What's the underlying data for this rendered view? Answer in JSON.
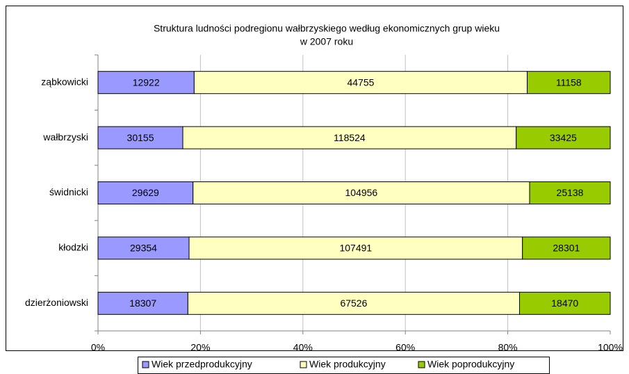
{
  "chart_data": {
    "type": "bar",
    "orientation": "horizontal",
    "stack": "percent",
    "title": [
      "Struktura ludności podregionu wałbrzyskiego według ekonomicznych grup wieku",
      "w 2007 roku"
    ],
    "categories": [
      "ząbkowicki",
      "wałbrzyski",
      "świdnicki",
      "kłodzki",
      "dzierżoniowski"
    ],
    "series": [
      {
        "name": "Wiek przedprodukcyjny",
        "color": "#9999ff",
        "values": [
          12922,
          30155,
          29629,
          29354,
          18307
        ]
      },
      {
        "name": "Wiek produkcyjny",
        "color": "#ffffc0",
        "values": [
          44755,
          118524,
          104956,
          107491,
          67526
        ]
      },
      {
        "name": "Wiek poprodukcyjny",
        "color": "#99cc00",
        "values": [
          11158,
          33425,
          25138,
          28301,
          18470
        ]
      }
    ],
    "xlim": [
      0,
      100
    ],
    "xticks": [
      {
        "value": 0,
        "label": "0%"
      },
      {
        "value": 20,
        "label": "20%"
      },
      {
        "value": 40,
        "label": "40%"
      },
      {
        "value": 60,
        "label": "60%"
      },
      {
        "value": 80,
        "label": "80%"
      },
      {
        "value": 100,
        "label": "100%"
      }
    ],
    "grid": true,
    "legend": "bottom"
  }
}
